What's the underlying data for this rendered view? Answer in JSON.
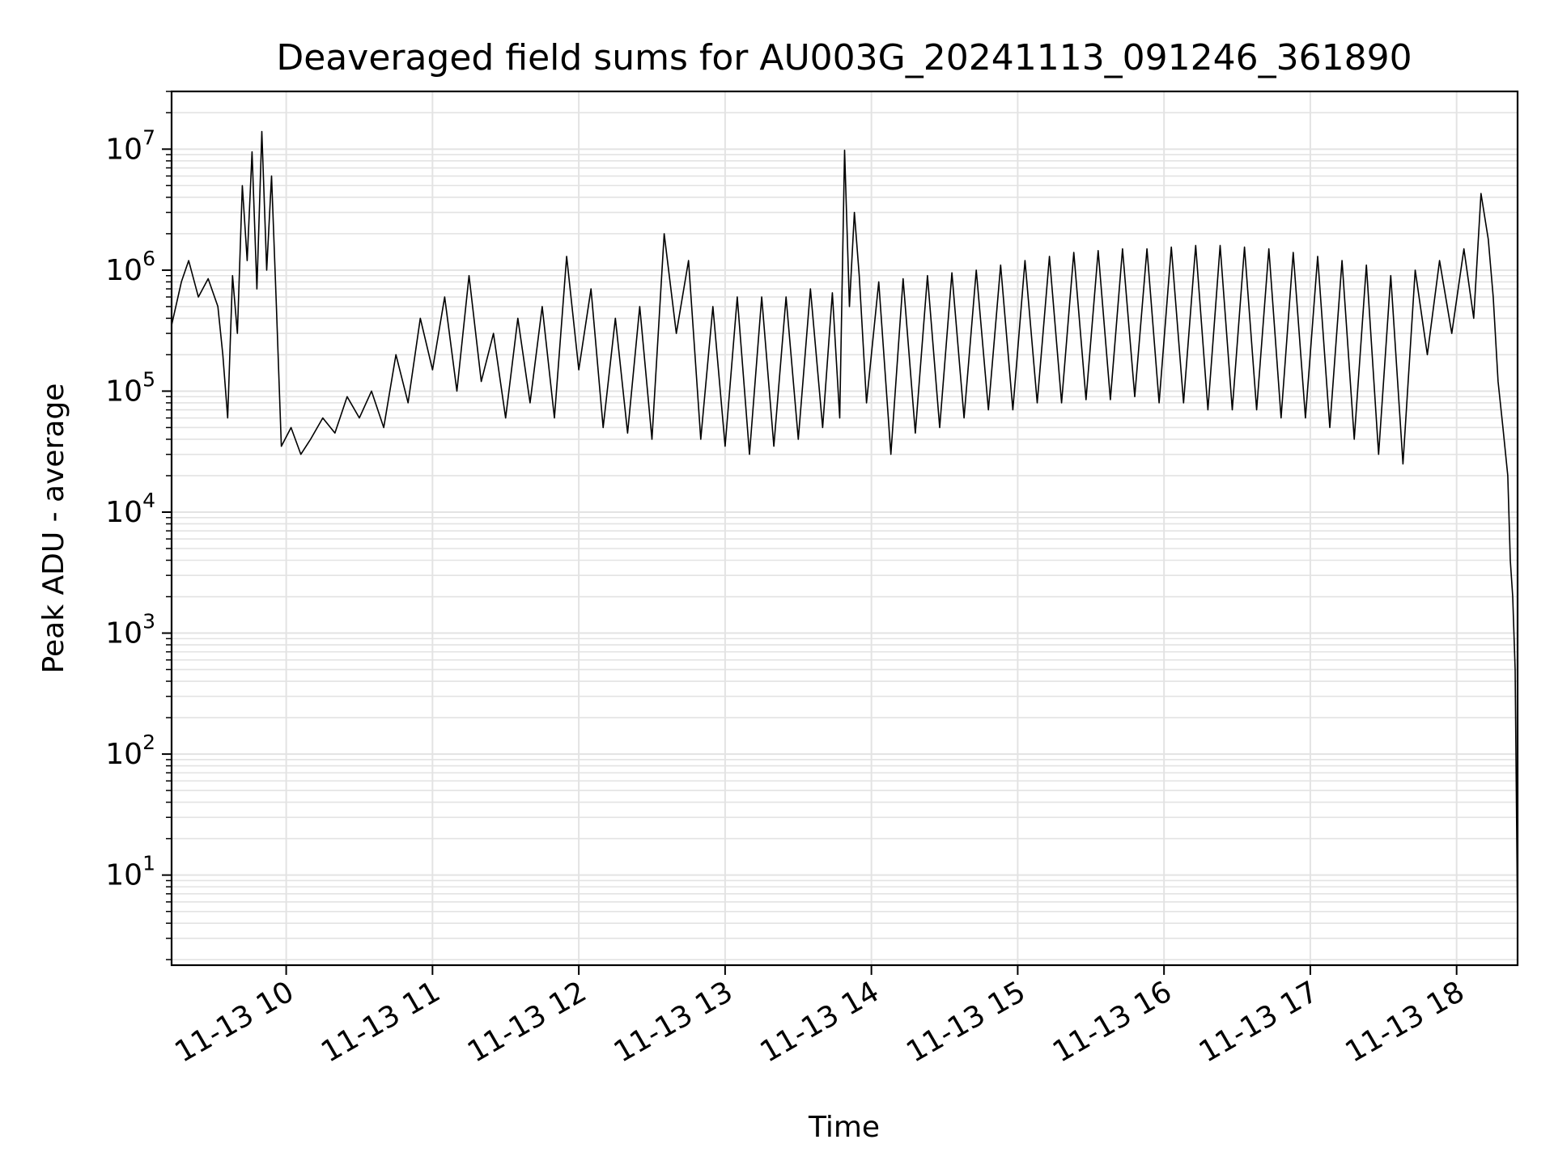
{
  "chart_data": {
    "type": "line",
    "title": "Deaveraged field sums for AU003G_20241113_091246_361890",
    "xlabel": "Time",
    "ylabel": "Peak ADU - average",
    "yscale": "log",
    "grid": true,
    "legend": "none",
    "line_color": "#000000",
    "grid_color": "#e3e3e3",
    "xlim": [
      "2024-11-13 09:13",
      "2024-11-13 18:25"
    ],
    "ylim": [
      1.8,
      30000000
    ],
    "x_ticks": [
      {
        "time": "2024-11-13 10:00",
        "label": "11-13 10"
      },
      {
        "time": "2024-11-13 11:00",
        "label": "11-13 11"
      },
      {
        "time": "2024-11-13 12:00",
        "label": "11-13 12"
      },
      {
        "time": "2024-11-13 13:00",
        "label": "11-13 13"
      },
      {
        "time": "2024-11-13 14:00",
        "label": "11-13 14"
      },
      {
        "time": "2024-11-13 15:00",
        "label": "11-13 15"
      },
      {
        "time": "2024-11-13 16:00",
        "label": "11-13 16"
      },
      {
        "time": "2024-11-13 17:00",
        "label": "11-13 17"
      },
      {
        "time": "2024-11-13 18:00",
        "label": "11-13 18"
      }
    ],
    "y_ticks": [
      {
        "value": 10,
        "base": "10",
        "exp": "1"
      },
      {
        "value": 100,
        "base": "10",
        "exp": "2"
      },
      {
        "value": 1000,
        "base": "10",
        "exp": "3"
      },
      {
        "value": 10000,
        "base": "10",
        "exp": "4"
      },
      {
        "value": 100000,
        "base": "10",
        "exp": "5"
      },
      {
        "value": 1000000,
        "base": "10",
        "exp": "6"
      },
      {
        "value": 10000000,
        "base": "10",
        "exp": "7"
      }
    ],
    "series": [
      {
        "x": [
          "2024-11-13 09:13",
          "2024-11-13 09:17",
          "2024-11-13 09:20",
          "2024-11-13 09:24",
          "2024-11-13 09:28",
          "2024-11-13 09:32",
          "2024-11-13 09:34",
          "2024-11-13 09:36",
          "2024-11-13 09:38",
          "2024-11-13 09:40",
          "2024-11-13 09:42",
          "2024-11-13 09:44",
          "2024-11-13 09:46",
          "2024-11-13 09:48",
          "2024-11-13 09:50",
          "2024-11-13 09:52",
          "2024-11-13 09:54",
          "2024-11-13 09:56",
          "2024-11-13 09:58",
          "2024-11-13 10:02",
          "2024-11-13 10:06",
          "2024-11-13 10:10",
          "2024-11-13 10:15",
          "2024-11-13 10:20",
          "2024-11-13 10:25",
          "2024-11-13 10:30",
          "2024-11-13 10:35",
          "2024-11-13 10:40",
          "2024-11-13 10:45",
          "2024-11-13 10:50",
          "2024-11-13 10:55",
          "2024-11-13 11:00",
          "2024-11-13 11:05",
          "2024-11-13 11:10",
          "2024-11-13 11:15",
          "2024-11-13 11:20",
          "2024-11-13 11:25",
          "2024-11-13 11:30",
          "2024-11-13 11:35",
          "2024-11-13 11:40",
          "2024-11-13 11:45",
          "2024-11-13 11:50",
          "2024-11-13 11:55",
          "2024-11-13 12:00",
          "2024-11-13 12:05",
          "2024-11-13 12:10",
          "2024-11-13 12:15",
          "2024-11-13 12:20",
          "2024-11-13 12:25",
          "2024-11-13 12:30",
          "2024-11-13 12:35",
          "2024-11-13 12:40",
          "2024-11-13 12:45",
          "2024-11-13 12:50",
          "2024-11-13 12:55",
          "2024-11-13 13:00",
          "2024-11-13 13:05",
          "2024-11-13 13:10",
          "2024-11-13 13:15",
          "2024-11-13 13:20",
          "2024-11-13 13:25",
          "2024-11-13 13:30",
          "2024-11-13 13:35",
          "2024-11-13 13:40",
          "2024-11-13 13:44",
          "2024-11-13 13:47",
          "2024-11-13 13:49",
          "2024-11-13 13:51",
          "2024-11-13 13:53",
          "2024-11-13 13:55",
          "2024-11-13 13:58",
          "2024-11-13 14:03",
          "2024-11-13 14:08",
          "2024-11-13 14:13",
          "2024-11-13 14:18",
          "2024-11-13 14:23",
          "2024-11-13 14:28",
          "2024-11-13 14:33",
          "2024-11-13 14:38",
          "2024-11-13 14:43",
          "2024-11-13 14:48",
          "2024-11-13 14:53",
          "2024-11-13 14:58",
          "2024-11-13 15:03",
          "2024-11-13 15:08",
          "2024-11-13 15:13",
          "2024-11-13 15:18",
          "2024-11-13 15:23",
          "2024-11-13 15:28",
          "2024-11-13 15:33",
          "2024-11-13 15:38",
          "2024-11-13 15:43",
          "2024-11-13 15:48",
          "2024-11-13 15:53",
          "2024-11-13 15:58",
          "2024-11-13 16:03",
          "2024-11-13 16:08",
          "2024-11-13 16:13",
          "2024-11-13 16:18",
          "2024-11-13 16:23",
          "2024-11-13 16:28",
          "2024-11-13 16:33",
          "2024-11-13 16:38",
          "2024-11-13 16:43",
          "2024-11-13 16:48",
          "2024-11-13 16:53",
          "2024-11-13 16:58",
          "2024-11-13 17:03",
          "2024-11-13 17:08",
          "2024-11-13 17:13",
          "2024-11-13 17:18",
          "2024-11-13 17:23",
          "2024-11-13 17:28",
          "2024-11-13 17:33",
          "2024-11-13 17:38",
          "2024-11-13 17:43",
          "2024-11-13 17:48",
          "2024-11-13 17:53",
          "2024-11-13 17:58",
          "2024-11-13 18:03",
          "2024-11-13 18:07",
          "2024-11-13 18:10",
          "2024-11-13 18:13",
          "2024-11-13 18:15",
          "2024-11-13 18:17",
          "2024-11-13 18:19",
          "2024-11-13 18:21",
          "2024-11-13 18:22",
          "2024-11-13 18:23",
          "2024-11-13 18:24",
          "2024-11-13 18:25"
        ],
        "values": [
          350000,
          800000,
          1200000,
          600000,
          850000,
          500000,
          200000,
          60000,
          900000,
          300000,
          5000000,
          1200000,
          9500000,
          700000,
          14000000,
          1000000,
          6000000,
          500000,
          35000,
          50000,
          30000,
          40000,
          60000,
          45000,
          90000,
          60000,
          100000,
          50000,
          200000,
          80000,
          400000,
          150000,
          600000,
          100000,
          900000,
          120000,
          300000,
          60000,
          400000,
          80000,
          500000,
          60000,
          1300000,
          150000,
          700000,
          50000,
          400000,
          45000,
          500000,
          40000,
          2000000,
          300000,
          1200000,
          40000,
          500000,
          35000,
          600000,
          30000,
          600000,
          35000,
          600000,
          40000,
          700000,
          50000,
          650000,
          60000,
          9800000,
          500000,
          3000000,
          900000,
          80000,
          800000,
          30000,
          850000,
          45000,
          900000,
          50000,
          950000,
          60000,
          1000000,
          70000,
          1100000,
          70000,
          1200000,
          80000,
          1300000,
          80000,
          1400000,
          85000,
          1450000,
          85000,
          1500000,
          90000,
          1500000,
          80000,
          1550000,
          80000,
          1600000,
          70000,
          1600000,
          70000,
          1550000,
          70000,
          1500000,
          60000,
          1400000,
          60000,
          1300000,
          50000,
          1200000,
          40000,
          1100000,
          30000,
          900000,
          25000,
          1000000,
          200000,
          1200000,
          300000,
          1500000,
          400000,
          4300000,
          1800000,
          600000,
          120000,
          50000,
          20000,
          4000,
          2000,
          500,
          4
        ]
      }
    ]
  }
}
